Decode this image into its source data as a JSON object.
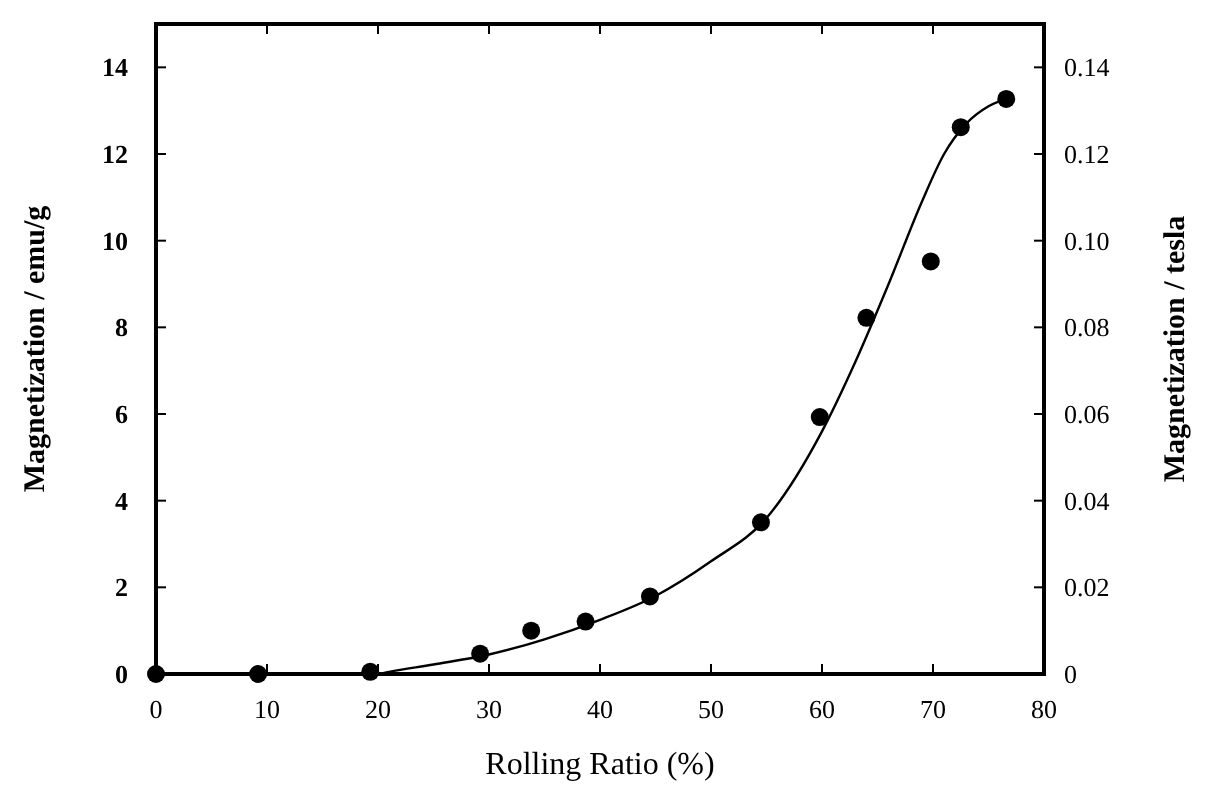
{
  "chart_data": {
    "type": "scatter",
    "xlabel": "Rolling Ratio (%)",
    "ylabel": "Magnetization / emu/g",
    "y2label": "Magnetization / tesla",
    "xlim": [
      0,
      80
    ],
    "xticks": [
      0,
      10,
      20,
      30,
      40,
      50,
      60,
      70,
      80
    ],
    "ylim": [
      0,
      15
    ],
    "yticks": [
      0,
      2,
      4,
      6,
      8,
      10,
      12,
      14
    ],
    "y2lim": [
      0,
      0.15
    ],
    "y2ticks": [
      0,
      0.02,
      0.04,
      0.06,
      0.08,
      {
        "value": 0.1,
        "label": "0.10"
      },
      0.12,
      0.14
    ],
    "series": [
      {
        "marker": "circle",
        "color": "#000000",
        "x": [
          0,
          9.2,
          19.3,
          29.2,
          33.8,
          38.7,
          44.5,
          54.5,
          59.8,
          64,
          69.8,
          72.5,
          76.6
        ],
        "values": [
          0,
          0,
          0.05,
          0.47,
          1.0,
          1.21,
          1.79,
          3.5,
          5.93,
          8.22,
          9.52,
          12.62,
          13.27
        ]
      },
      {
        "type": "line",
        "color": "#000000",
        "x": [
          0,
          10,
          20,
          21,
          25,
          30,
          35,
          40,
          45,
          50,
          55,
          60,
          63,
          66,
          69,
          71,
          73,
          75,
          77
        ],
        "values": [
          0,
          0,
          0,
          0.05,
          0.22,
          0.45,
          0.8,
          1.25,
          1.8,
          2.6,
          3.6,
          5.6,
          7.2,
          9.0,
          10.9,
          12.0,
          12.7,
          13.1,
          13.3
        ]
      }
    ]
  }
}
